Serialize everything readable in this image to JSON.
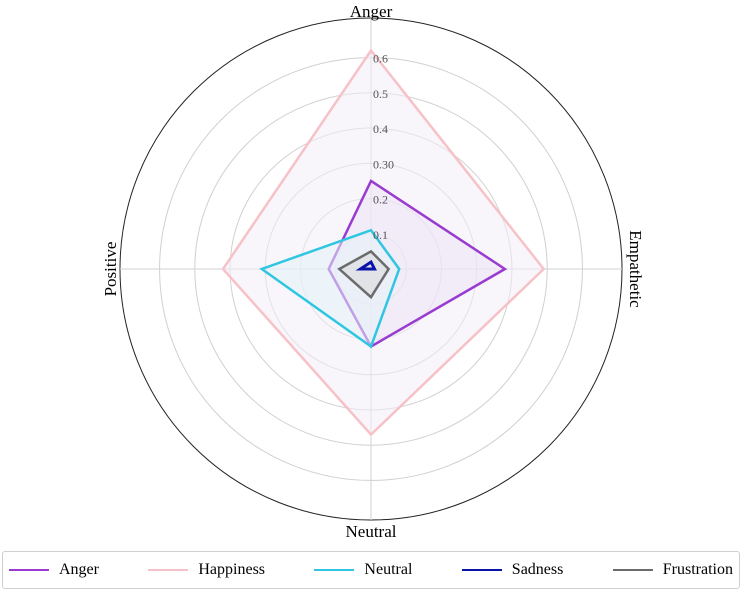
{
  "chart_data": {
    "type": "radar",
    "axes": [
      "Anger",
      "Empathetic",
      "Neutral",
      "Positive"
    ],
    "radial_ticks": [
      "0.1",
      "0.2",
      "0.30",
      "0.4",
      "0.5",
      "0.6"
    ],
    "rmax": 0.63,
    "series": [
      {
        "name": "Happiness",
        "values": [
          0.62,
          0.49,
          0.47,
          0.42
        ],
        "color": "#f7c1c8",
        "fill": "#f3eef8"
      },
      {
        "name": "Anger",
        "values": [
          0.25,
          0.38,
          0.22,
          0.12
        ],
        "color": "#9a3bd0",
        "fill": "#ede3f7"
      },
      {
        "name": "Neutral",
        "values": [
          0.11,
          0.08,
          0.22,
          0.31
        ],
        "color": "#2ec6e0",
        "fill": "#e4f3f8"
      },
      {
        "name": "Frustration",
        "values": [
          0.05,
          0.05,
          0.08,
          0.09
        ],
        "color": "#6b6b6b",
        "fill": "#d9d9d9"
      },
      {
        "name": "Sadness",
        "values": [
          0.02,
          0.01,
          0.0,
          0.03
        ],
        "color": "#0a13a8",
        "fill": "none"
      }
    ],
    "legend": {
      "placement": "bottom",
      "items": [
        {
          "label": "Anger",
          "color": "#9a3bd0"
        },
        {
          "label": "Happiness",
          "color": "#f7c1c8"
        },
        {
          "label": "Neutral",
          "color": "#2ec6e0"
        },
        {
          "label": "Sadness",
          "color": "#0a13a8"
        },
        {
          "label": "Frustration",
          "color": "#6b6b6b"
        }
      ]
    }
  }
}
